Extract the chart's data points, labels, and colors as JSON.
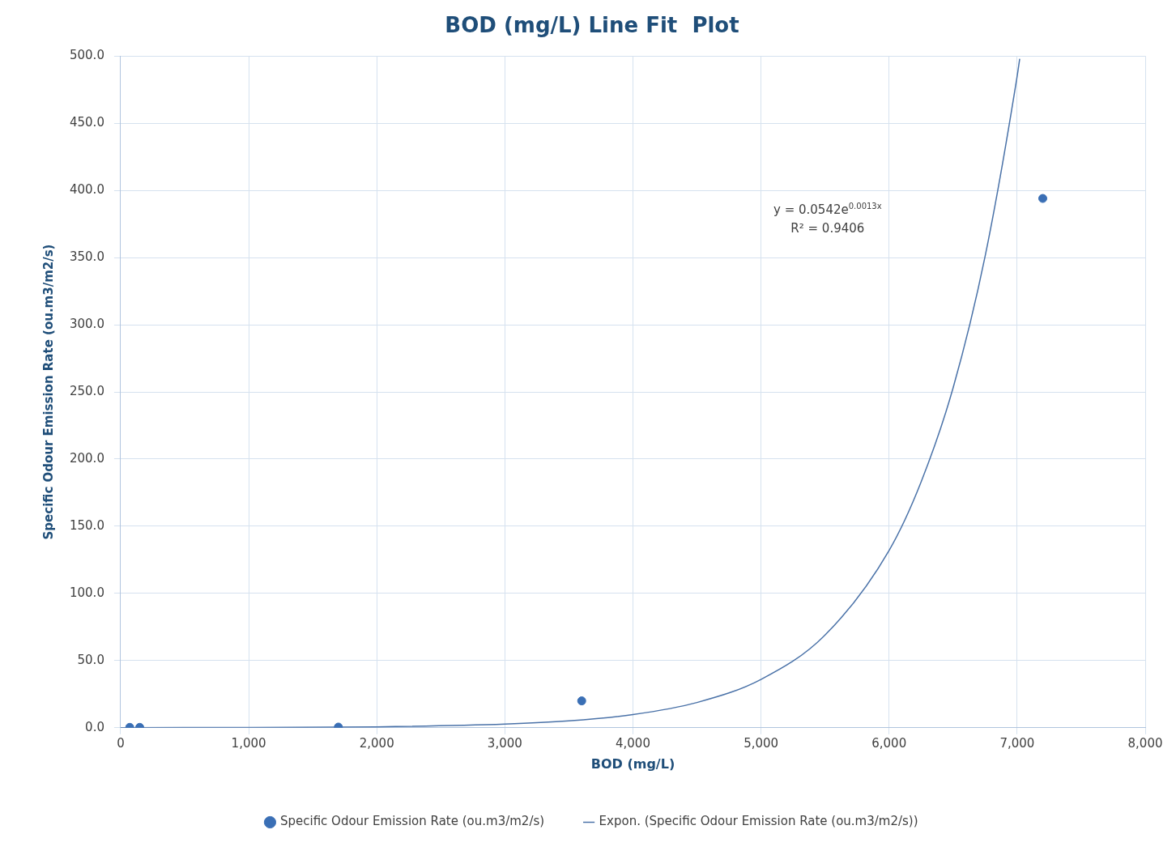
{
  "chart_data": {
    "type": "scatter",
    "title": "BOD (mg/L) Line Fit  Plot",
    "xlabel": "BOD (mg/L)",
    "ylabel": "Specific Odour Emission Rate (ou.m3/m2/s)",
    "series": [
      {
        "name": "Specific Odour Emission Rate (ou.m3/m2/s)",
        "marker": "circle",
        "color": "#3a6fb5",
        "x": [
          71,
          149,
          1700,
          3600,
          7200
        ],
        "values": [
          0.3,
          0.3,
          0.5,
          20,
          394
        ]
      },
      {
        "name": "Expon. (Specific Odour Emission Rate (ou.m3/m2/s))",
        "type": "line",
        "marker": "none",
        "color": "#4a72a8",
        "x": [
          0,
          1000,
          2000,
          3000,
          3500,
          4000,
          4500,
          5000,
          5500,
          6000,
          6250,
          6500,
          6750,
          7000,
          7020
        ],
        "values": [
          0.1,
          0.2,
          0.7,
          2.7,
          5.1,
          9.8,
          18.8,
          36,
          69,
          132,
          183,
          253,
          351,
          485,
          498
        ]
      }
    ],
    "annotations": [
      "y = 0.0542e$^{0.0013x}$",
      "R² = 0.9406"
    ],
    "xlim": [
      0,
      8000
    ],
    "xticks": [
      0,
      {
        "value": 1000,
        "label": "1,000"
      },
      {
        "value": 2000,
        "label": "2,000"
      },
      {
        "value": 3000,
        "label": "3,000"
      },
      {
        "value": 4000,
        "label": "4,000"
      },
      {
        "value": 5000,
        "label": "5,000"
      },
      {
        "value": 6000,
        "label": "6,000"
      },
      {
        "value": 7000,
        "label": "7,000"
      },
      {
        "value": 8000,
        "label": "8,000"
      }
    ],
    "ylim": [
      0,
      500
    ],
    "yticks": [
      {
        "value": 0,
        "label": "0.0"
      },
      {
        "value": 50,
        "label": "50.0"
      },
      {
        "value": 100,
        "label": "100.0"
      },
      {
        "value": 150,
        "label": "150.0"
      },
      {
        "value": 200,
        "label": "200.0"
      },
      {
        "value": 250,
        "label": "250.0"
      },
      {
        "value": 300,
        "label": "300.0"
      },
      {
        "value": 350,
        "label": "350.0"
      },
      {
        "value": 400,
        "label": "400.0"
      },
      {
        "value": 450,
        "label": "450.0"
      },
      {
        "value": 500,
        "label": "500.0"
      }
    ],
    "grid": true,
    "legend": "bottom",
    "line_style": "solid"
  }
}
